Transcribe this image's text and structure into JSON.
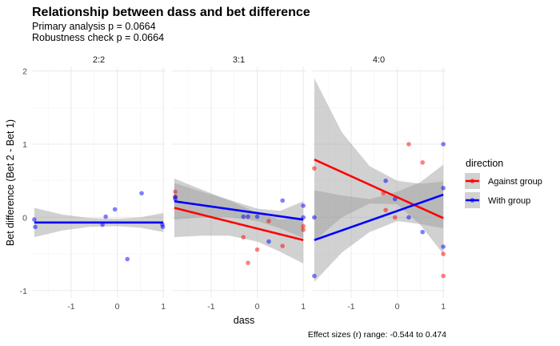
{
  "chart_data": {
    "type": "scatter",
    "title": "Relationship between dass and bet difference",
    "subtitle_lines": [
      "Primary analysis p = 0.0664",
      "Robustness check p = 0.0664"
    ],
    "xlabel": "dass",
    "ylabel": "Bet difference (Bet 2 - Bet 1)",
    "caption": "Effect sizes (r) range: -0.544 to 0.474",
    "xlim": [
      -1.85,
      1.05
    ],
    "ylim": [
      -1.1,
      2.05
    ],
    "x_ticks": [
      -1,
      0,
      1
    ],
    "x_tick_labels": [
      "-1",
      "0",
      "1"
    ],
    "y_ticks": [
      -1,
      0,
      1,
      2
    ],
    "y_tick_labels": [
      "-1",
      "0",
      "1",
      "2"
    ],
    "grid": true,
    "legend": {
      "title": "direction",
      "position": "right",
      "entries": [
        {
          "label": "Against group",
          "color": "#ff0000"
        },
        {
          "label": "With group",
          "color": "#0000ff"
        }
      ]
    },
    "colors": {
      "against": "#ff0000",
      "with": "#0000ff",
      "ribbon": "#999999",
      "grid": "#ebebeb"
    },
    "panels": [
      {
        "label": "2:2",
        "series": [
          {
            "key": "with",
            "points": [
              [
                -1.8,
                -0.03
              ],
              [
                -1.78,
                -0.13
              ],
              [
                -0.32,
                -0.1
              ],
              [
                -0.25,
                0.01
              ],
              [
                -0.05,
                0.11
              ],
              [
                0.22,
                -0.57
              ],
              [
                0.53,
                0.33
              ],
              [
                0.98,
                -0.1
              ],
              [
                0.99,
                -0.13
              ]
            ],
            "fit": {
              "x": [
                -1.8,
                1.0
              ],
              "y": [
                -0.07,
                -0.07
              ]
            },
            "ribbon": {
              "x": [
                -1.8,
                -1.2,
                -0.6,
                0.0,
                0.5,
                1.0
              ],
              "lower": [
                -0.27,
                -0.18,
                -0.13,
                -0.12,
                -0.14,
                -0.2
              ],
              "upper": [
                0.13,
                0.04,
                -0.01,
                -0.02,
                0.0,
                0.06
              ]
            }
          }
        ]
      },
      {
        "label": "3:1",
        "series": [
          {
            "key": "against",
            "points": [
              [
                -1.78,
                0.35
              ],
              [
                -1.78,
                0.28
              ],
              [
                -0.3,
                -0.27
              ],
              [
                -0.2,
                -0.62
              ],
              [
                0.0,
                -0.44
              ],
              [
                0.25,
                -0.05
              ],
              [
                0.55,
                -0.39
              ],
              [
                1.0,
                -0.12
              ],
              [
                1.0,
                -0.17
              ]
            ],
            "fit": {
              "x": [
                -1.8,
                1.0
              ],
              "y": [
                0.13,
                -0.31
              ]
            },
            "ribbon": {
              "x": [
                -1.8,
                -1.2,
                -0.6,
                0.0,
                0.5,
                1.0
              ],
              "lower": [
                -0.27,
                -0.25,
                -0.25,
                -0.33,
                -0.47,
                -0.63
              ],
              "upper": [
                0.53,
                0.38,
                0.23,
                0.06,
                -0.03,
                0.0
              ]
            }
          },
          {
            "key": "with",
            "points": [
              [
                -1.78,
                0.25
              ],
              [
                -1.78,
                0.28
              ],
              [
                -0.3,
                0.01
              ],
              [
                -0.2,
                0.01
              ],
              [
                0.0,
                0.01
              ],
              [
                0.25,
                -0.33
              ],
              [
                0.55,
                0.23
              ],
              [
                1.0,
                0.16
              ],
              [
                1.0,
                0.0
              ]
            ],
            "fit": {
              "x": [
                -1.8,
                1.0
              ],
              "y": [
                0.22,
                -0.03
              ]
            },
            "ribbon": {
              "x": [
                -1.8,
                -1.2,
                -0.6,
                0.0,
                0.5,
                1.0
              ],
              "lower": [
                -0.03,
                0.0,
                0.0,
                -0.05,
                -0.15,
                -0.28
              ],
              "upper": [
                0.47,
                0.35,
                0.24,
                0.12,
                0.09,
                0.22
              ]
            }
          }
        ]
      },
      {
        "label": "4:0",
        "series": [
          {
            "key": "against",
            "points": [
              [
                -1.8,
                0.67
              ],
              [
                -0.3,
                0.33
              ],
              [
                -0.25,
                0.1
              ],
              [
                -0.05,
                0.0
              ],
              [
                0.25,
                1.0
              ],
              [
                0.55,
                0.75
              ],
              [
                1.0,
                -0.5
              ],
              [
                1.0,
                -0.8
              ]
            ],
            "fit": {
              "x": [
                -1.8,
                1.0
              ],
              "y": [
                0.79,
                -0.01
              ]
            },
            "ribbon": {
              "x": [
                -1.8,
                -1.2,
                -0.6,
                0.0,
                0.5,
                1.0
              ],
              "lower": [
                -0.32,
                0.0,
                0.19,
                0.18,
                -0.1,
                -0.5
              ],
              "upper": [
                1.9,
                1.16,
                0.7,
                0.5,
                0.46,
                0.49
              ]
            }
          },
          {
            "key": "with",
            "points": [
              [
                -1.8,
                0.0
              ],
              [
                -1.8,
                -0.8
              ],
              [
                -0.25,
                0.5
              ],
              [
                -0.05,
                0.25
              ],
              [
                0.25,
                0.0
              ],
              [
                0.55,
                -0.2
              ],
              [
                1.0,
                1.0
              ],
              [
                1.0,
                0.4
              ],
              [
                1.0,
                -0.4
              ]
            ],
            "fit": {
              "x": [
                -1.8,
                1.0
              ],
              "y": [
                -0.31,
                0.31
              ]
            },
            "ribbon": {
              "x": [
                -1.8,
                -1.2,
                -0.6,
                0.0,
                0.5,
                1.0
              ],
              "lower": [
                -0.88,
                -0.48,
                -0.2,
                -0.05,
                -0.09,
                -0.15
              ],
              "upper": [
                0.37,
                0.3,
                0.25,
                0.35,
                0.48,
                0.72
              ]
            }
          }
        ]
      }
    ]
  }
}
